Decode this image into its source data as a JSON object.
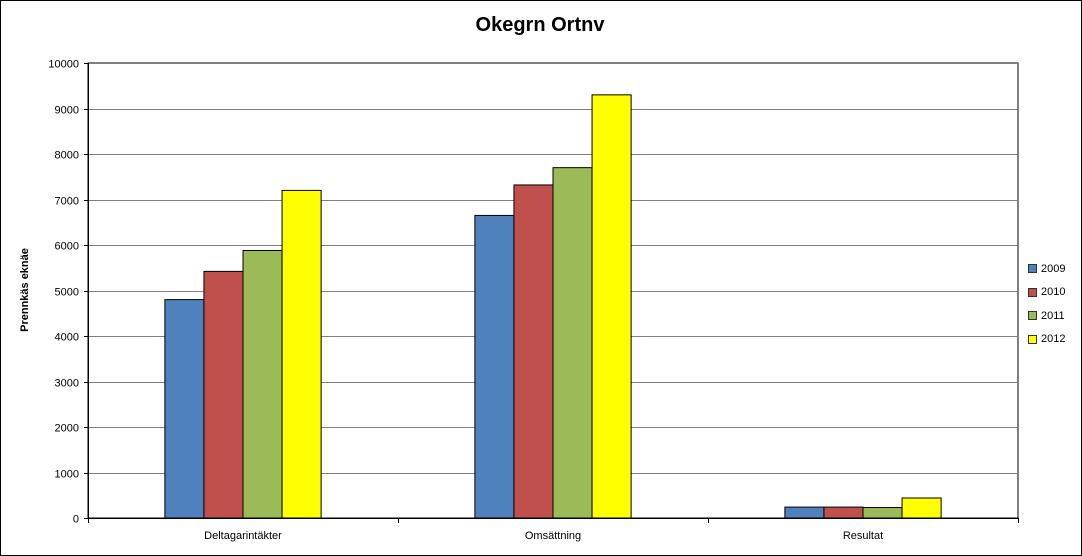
{
  "chart_data": {
    "type": "bar",
    "title": "Okegrn Ortnv",
    "xlabel": "",
    "ylabel": "Prennkäs eknäe",
    "categories": [
      "Deltagarintäkter",
      "Omsättning",
      "Resultat"
    ],
    "series": [
      {
        "name": "2009",
        "color": "#4F81BD",
        "values": [
          4800,
          6650,
          240
        ]
      },
      {
        "name": "2010",
        "color": "#C0504D",
        "values": [
          5420,
          7320,
          240
        ]
      },
      {
        "name": "2011",
        "color": "#9BBB59",
        "values": [
          5880,
          7700,
          230
        ]
      },
      {
        "name": "2012",
        "color": "#FFFF00",
        "values": [
          7200,
          9300,
          440
        ]
      }
    ],
    "ylim": [
      0,
      10000
    ],
    "yticks": [
      "0",
      "1000",
      "2000",
      "3000",
      "4000",
      "5000",
      "6000",
      "7000",
      "8000",
      "9000",
      "10000"
    ],
    "grid": true,
    "legend_position": "right"
  }
}
